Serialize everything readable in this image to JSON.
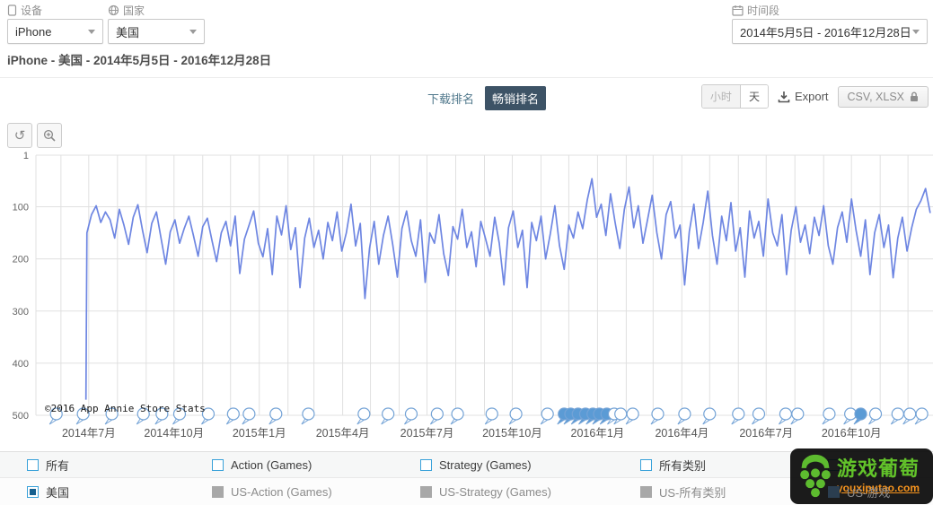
{
  "filters": {
    "device": {
      "label": "设备",
      "value": "iPhone"
    },
    "country": {
      "label": "国家",
      "value": "美国"
    },
    "period": {
      "label": "时间段",
      "value": "2014年5月5日 - 2016年12月28日"
    }
  },
  "breadcrumb": "iPhone - 美国 - 2014年5月5日 - 2016年12月28日",
  "toolbar": {
    "tabs": [
      {
        "label": "下载排名",
        "active": false
      },
      {
        "label": "畅销排名",
        "active": true
      }
    ],
    "granularity": [
      {
        "label": "小时",
        "active": false
      },
      {
        "label": "天",
        "active": true
      }
    ],
    "export_label": "Export",
    "download_formats": "CSV, XLSX"
  },
  "chart_data": {
    "type": "line",
    "title": "",
    "xlabel": "",
    "ylabel": "rank",
    "y_inverted": true,
    "y_ticks": [
      1,
      100,
      200,
      300,
      400,
      500
    ],
    "y_max": 500,
    "x_start": "2014-05-05",
    "x_end": "2016-12-28",
    "x_tick_every_months": 3,
    "grid": true,
    "watermark": "©2016 App Annie Store Stats",
    "series": [
      {
        "name": "美国",
        "color": "#6e86e2",
        "day_start": 55,
        "day_step": 5,
        "lead_point": [
          54,
          470
        ],
        "ranks": [
          150,
          115,
          98,
          130,
          110,
          125,
          160,
          105,
          135,
          172,
          120,
          96,
          145,
          188,
          132,
          110,
          160,
          210,
          148,
          125,
          170,
          142,
          118,
          155,
          195,
          138,
          122,
          165,
          205,
          150,
          128,
          175,
          118,
          228,
          162,
          135,
          108,
          170,
          196,
          142,
          230,
          118,
          154,
          98,
          182,
          140,
          255,
          160,
          122,
          178,
          145,
          200,
          130,
          165,
          110,
          185,
          150,
          95,
          175,
          132,
          276,
          180,
          128,
          210,
          155,
          118,
          172,
          235,
          142,
          108,
          165,
          195,
          125,
          245,
          150,
          170,
          115,
          190,
          232,
          138,
          162,
          105,
          178,
          148,
          215,
          128,
          160,
          195,
          120,
          170,
          250,
          140,
          108,
          178,
          145,
          255,
          130,
          165,
          118,
          200,
          152,
          98,
          175,
          220,
          135,
          160,
          110,
          142,
          86,
          46,
          120,
          95,
          155,
          75,
          130,
          180,
          105,
          62,
          140,
          98,
          170,
          125,
          78,
          150,
          200,
          115,
          90,
          160,
          135,
          250,
          148,
          95,
          180,
          130,
          70,
          155,
          210,
          118,
          165,
          92,
          185,
          140,
          235,
          108,
          160,
          128,
          195,
          85,
          150,
          175,
          115,
          230,
          145,
          100,
          168,
          135,
          190,
          120,
          155,
          98,
          175,
          210,
          140,
          110,
          168,
          85,
          145,
          195,
          125,
          230,
          150,
          115,
          178,
          135,
          236,
          160,
          120,
          185,
          140,
          105,
          88,
          65,
          112
        ]
      }
    ],
    "event_days": [
      22,
      51,
      82,
      116,
      136,
      155,
      186,
      213,
      230,
      259,
      294,
      354,
      380,
      405,
      433,
      455,
      492,
      518,
      552,
      570,
      577,
      585,
      593,
      601,
      608,
      616,
      624,
      631,
      644,
      671,
      700,
      727,
      758,
      780,
      809,
      822,
      856,
      879,
      890,
      906,
      930,
      943,
      956
    ],
    "event_filled_days": [
      570,
      577,
      585,
      593,
      601,
      608,
      616,
      890
    ]
  },
  "legend": {
    "categories": [
      {
        "label": "所有"
      },
      {
        "label": "Action (Games)"
      },
      {
        "label": "Strategy (Games)"
      },
      {
        "label": "所有类别"
      },
      {
        "label": "游戏"
      }
    ],
    "series": [
      {
        "label": "美国",
        "type": "checked"
      },
      {
        "label": "US-Action (Games)",
        "type": "gray"
      },
      {
        "label": "US-Strategy (Games)",
        "type": "gray"
      },
      {
        "label": "US-所有类别",
        "type": "gray"
      },
      {
        "label": "US-游戏",
        "type": "dark"
      }
    ]
  },
  "watermark_logo": {
    "title": "游戏葡萄",
    "url_text": "youxiputao.com"
  },
  "colors": {
    "line": "#6e86e2",
    "active_tab": "#3d5366",
    "accent_blue": "#38a1d9",
    "event_fill": "#5b9bd5"
  }
}
